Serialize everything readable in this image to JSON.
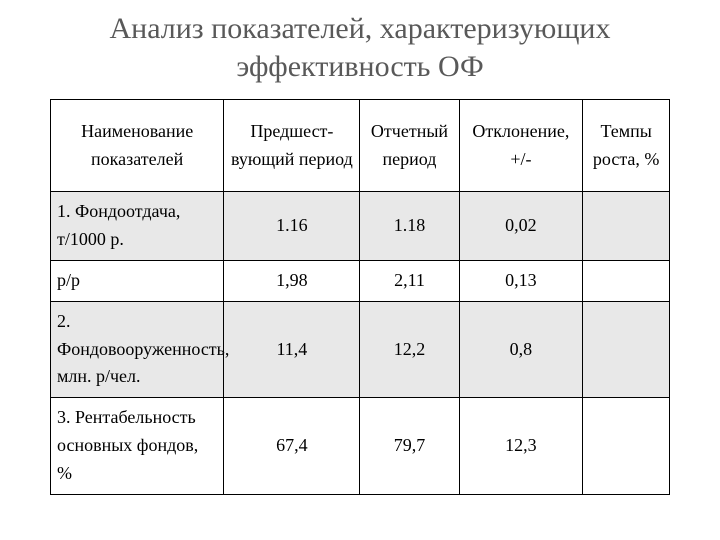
{
  "title": "Анализ показателей, характеризующих эффективность ОФ",
  "table": {
    "type": "table",
    "background_color": "#ffffff",
    "shaded_row_color": "#e8e8e8",
    "border_color": "#000000",
    "text_color": "#000000",
    "title_color": "#595959",
    "title_fontsize": 30,
    "cell_fontsize": 18,
    "columns": [
      {
        "label": "Наименование показателей",
        "width_pct": 28,
        "align": "left_for_body"
      },
      {
        "label": "Предшест-вующий период",
        "width_pct": 22,
        "align": "center"
      },
      {
        "label": "Отчетный период",
        "width_pct": 16,
        "align": "center"
      },
      {
        "label": "Отклонение,\n+/-",
        "width_pct": 20,
        "align": "center"
      },
      {
        "label": "Темпы роста, %",
        "width_pct": 14,
        "align": "center"
      }
    ],
    "rows": [
      {
        "shaded": true,
        "cells": [
          "1. Фондоотдача, т/1000 р.",
          "1.16",
          "1.18",
          "0,02",
          ""
        ]
      },
      {
        "shaded": false,
        "cells": [
          "р/р",
          "1,98",
          "2,11",
          "0,13",
          ""
        ]
      },
      {
        "shaded": true,
        "cells": [
          "2. Фондовооруженность, млн. р/чел.",
          "11,4",
          "12,2",
          "0,8",
          ""
        ]
      },
      {
        "shaded": false,
        "cells": [
          "3. Рентабельность основных фондов, %",
          "67,4",
          "79,7",
          "12,3",
          ""
        ]
      }
    ]
  }
}
